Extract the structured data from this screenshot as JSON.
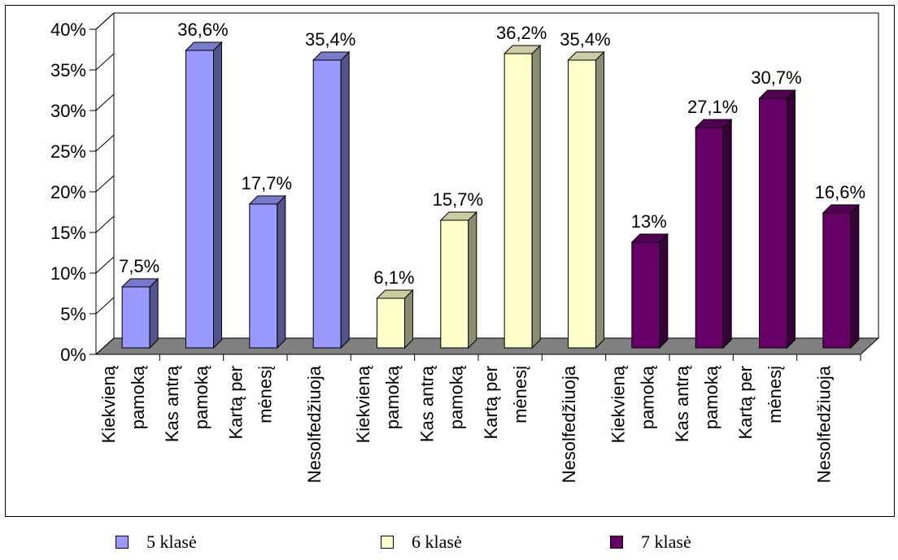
{
  "chart_data": {
    "type": "bar",
    "categories": [
      [
        "Kiekvieną",
        "pamoką"
      ],
      [
        "Kas antrą",
        "pamoką"
      ],
      [
        "Kartą per",
        "mėnesį"
      ],
      [
        "Nesolfedžiuoja"
      ]
    ],
    "series": [
      {
        "name": "5 klasė",
        "color": "#9999ff",
        "values": [
          7.5,
          36.6,
          17.7,
          35.4
        ],
        "labels": [
          "7,5%",
          "36,6%",
          "17,7%",
          "35,4%"
        ]
      },
      {
        "name": "6 klasė",
        "color": "#ffffcc",
        "values": [
          6.1,
          15.7,
          36.2,
          35.4
        ],
        "labels": [
          "6,1%",
          "15,7%",
          "36,2%",
          "35,4%"
        ]
      },
      {
        "name": "7 klasė",
        "color": "#660066",
        "values": [
          13,
          27.1,
          30.7,
          16.6
        ],
        "labels": [
          "13%",
          "27,1%",
          "30,7%",
          "16,6%"
        ]
      }
    ],
    "y_ticks": [
      "0%",
      "5%",
      "10%",
      "15%",
      "20%",
      "25%",
      "30%",
      "35%",
      "40%"
    ],
    "ylim": [
      0,
      40
    ],
    "floor_color": "#808080",
    "legend_position": "bottom"
  }
}
